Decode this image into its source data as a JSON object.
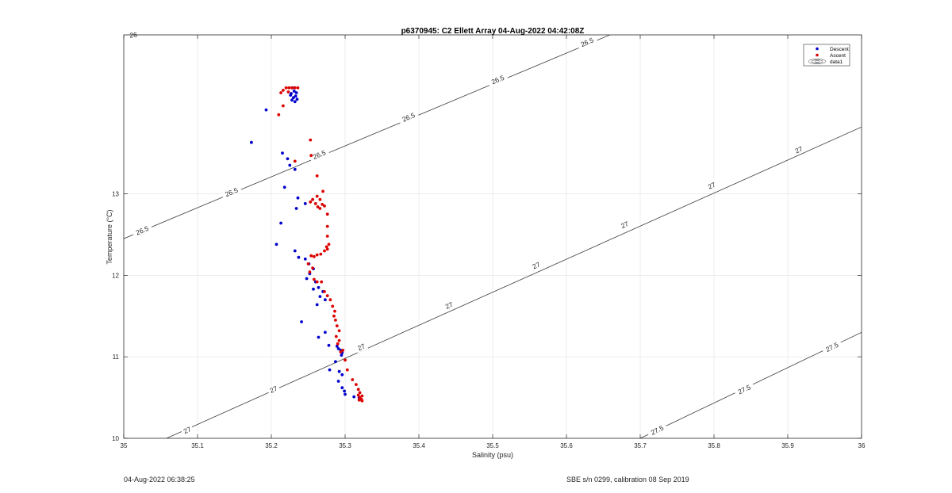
{
  "chart_data": {
    "type": "scatter",
    "title": "p6370945: C2 Ellett Array 04-Aug-2022 04:42:08Z",
    "xlabel": "Salinity (psu)",
    "ylabel": "Temperature (°C)",
    "xlim": [
      35,
      36
    ],
    "ylim": [
      10,
      14.95
    ],
    "xticks": [
      "35",
      "35.1",
      "35.2",
      "35.3",
      "35.4",
      "35.5",
      "35.6",
      "35.7",
      "35.8",
      "35.9",
      "36"
    ],
    "yticks": [
      "10",
      "11",
      "12",
      "13"
    ],
    "grid": true,
    "legend_position": "top-right",
    "legend": [
      {
        "label": "Descent",
        "color": "#0000cc",
        "marker": "dot"
      },
      {
        "label": "Ascent",
        "color": "#dd0000",
        "marker": "dot"
      },
      {
        "label": "data1",
        "marker": "contour"
      }
    ],
    "contours": [
      {
        "level": 26,
        "points": [
          [
            35.0,
            14.98
          ],
          [
            35.035,
            15.02
          ]
        ],
        "labels": [
          {
            "x": 35.013,
            "y": 14.95,
            "text": "26"
          }
        ]
      },
      {
        "level": 26.5,
        "points": [
          [
            35.0,
            12.45
          ],
          [
            35.68,
            15.03
          ]
        ],
        "labels": [
          {
            "x": 35.025,
            "y": 12.55,
            "text": "26.5"
          },
          {
            "x": 35.146,
            "y": 13.02,
            "text": "26.5"
          },
          {
            "x": 35.265,
            "y": 13.48,
            "text": "26.5"
          },
          {
            "x": 35.386,
            "y": 13.94,
            "text": "26.5"
          },
          {
            "x": 35.507,
            "y": 14.4,
            "text": "26.5"
          },
          {
            "x": 35.628,
            "y": 14.86,
            "text": "26.5"
          }
        ]
      },
      {
        "level": 27,
        "points": [
          [
            35.058,
            10.0
          ],
          [
            36.0,
            13.82
          ]
        ],
        "labels": [
          {
            "x": 35.086,
            "y": 10.1,
            "text": "27"
          },
          {
            "x": 35.203,
            "y": 10.6,
            "text": "27"
          },
          {
            "x": 35.322,
            "y": 11.12,
            "text": "27"
          },
          {
            "x": 35.441,
            "y": 11.63,
            "text": "27"
          },
          {
            "x": 35.559,
            "y": 12.12,
            "text": "27"
          },
          {
            "x": 35.679,
            "y": 12.62,
            "text": "27"
          },
          {
            "x": 35.797,
            "y": 13.1,
            "text": "27"
          },
          {
            "x": 35.915,
            "y": 13.54,
            "text": "27"
          }
        ]
      },
      {
        "level": 27.5,
        "points": [
          [
            35.7,
            10.0
          ],
          [
            36.0,
            11.3
          ]
        ],
        "labels": [
          {
            "x": 35.723,
            "y": 10.1,
            "text": "27.5"
          },
          {
            "x": 35.841,
            "y": 10.6,
            "text": "27.5"
          },
          {
            "x": 35.96,
            "y": 11.12,
            "text": "27.5"
          }
        ]
      }
    ],
    "series": [
      {
        "name": "Descent",
        "color": "#0000cc",
        "points": [
          [
            35.229,
            14.3
          ],
          [
            35.231,
            14.26
          ],
          [
            35.234,
            14.24
          ],
          [
            35.227,
            14.23
          ],
          [
            35.233,
            14.2
          ],
          [
            35.226,
            14.21
          ],
          [
            35.23,
            14.18
          ],
          [
            35.235,
            14.16
          ],
          [
            35.228,
            14.15
          ],
          [
            35.232,
            14.13
          ],
          [
            35.193,
            14.03
          ],
          [
            35.173,
            13.63
          ],
          [
            35.215,
            13.5
          ],
          [
            35.222,
            13.43
          ],
          [
            35.225,
            13.35
          ],
          [
            35.232,
            13.3
          ],
          [
            35.218,
            13.08
          ],
          [
            35.236,
            12.95
          ],
          [
            35.246,
            12.88
          ],
          [
            35.234,
            12.82
          ],
          [
            35.213,
            12.64
          ],
          [
            35.207,
            12.38
          ],
          [
            35.232,
            12.3
          ],
          [
            35.237,
            12.22
          ],
          [
            35.246,
            12.2
          ],
          [
            35.251,
            12.14
          ],
          [
            35.257,
            12.08
          ],
          [
            35.252,
            12.02
          ],
          [
            35.248,
            11.96
          ],
          [
            35.26,
            11.92
          ],
          [
            35.264,
            11.85
          ],
          [
            35.257,
            11.83
          ],
          [
            35.27,
            11.8
          ],
          [
            35.266,
            11.74
          ],
          [
            35.273,
            11.7
          ],
          [
            35.262,
            11.64
          ],
          [
            35.241,
            11.43
          ],
          [
            35.273,
            11.3
          ],
          [
            35.264,
            11.24
          ],
          [
            35.278,
            11.14
          ],
          [
            35.289,
            11.13
          ],
          [
            35.291,
            11.1
          ],
          [
            35.294,
            11.08
          ],
          [
            35.296,
            11.05
          ],
          [
            35.295,
            11.02
          ],
          [
            35.287,
            10.94
          ],
          [
            35.279,
            10.84
          ],
          [
            35.292,
            10.82
          ],
          [
            35.296,
            10.78
          ],
          [
            35.291,
            10.7
          ],
          [
            35.296,
            10.62
          ],
          [
            35.299,
            10.58
          ],
          [
            35.3,
            10.54
          ],
          [
            35.312,
            10.51
          ],
          [
            35.319,
            10.5
          ]
        ]
      },
      {
        "name": "Ascent",
        "color": "#dd0000",
        "points": [
          [
            35.22,
            14.3
          ],
          [
            35.224,
            14.3
          ],
          [
            35.228,
            14.3
          ],
          [
            35.232,
            14.3
          ],
          [
            35.236,
            14.3
          ],
          [
            35.216,
            14.27
          ],
          [
            35.213,
            14.24
          ],
          [
            35.223,
            14.25
          ],
          [
            35.216,
            14.08
          ],
          [
            35.21,
            13.97
          ],
          [
            35.253,
            13.66
          ],
          [
            35.232,
            13.4
          ],
          [
            35.254,
            13.47
          ],
          [
            35.262,
            13.22
          ],
          [
            35.27,
            13.03
          ],
          [
            35.262,
            12.97
          ],
          [
            35.266,
            12.93
          ],
          [
            35.256,
            12.93
          ],
          [
            35.26,
            12.88
          ],
          [
            35.253,
            12.9
          ],
          [
            35.269,
            12.87
          ],
          [
            35.276,
            12.75
          ],
          [
            35.272,
            12.85
          ],
          [
            35.263,
            12.84
          ],
          [
            35.266,
            12.82
          ],
          [
            35.276,
            12.6
          ],
          [
            35.276,
            12.48
          ],
          [
            35.278,
            12.38
          ],
          [
            35.275,
            12.35
          ],
          [
            35.272,
            12.3
          ],
          [
            35.276,
            12.32
          ],
          [
            35.267,
            12.26
          ],
          [
            35.262,
            12.25
          ],
          [
            35.258,
            12.23
          ],
          [
            35.254,
            12.24
          ],
          [
            35.25,
            12.14
          ],
          [
            35.256,
            12.09
          ],
          [
            35.252,
            12.04
          ],
          [
            35.258,
            11.95
          ],
          [
            35.262,
            11.92
          ],
          [
            35.268,
            11.92
          ],
          [
            35.272,
            11.8
          ],
          [
            35.276,
            11.75
          ],
          [
            35.28,
            11.7
          ],
          [
            35.283,
            11.62
          ],
          [
            35.286,
            11.56
          ],
          [
            35.285,
            11.5
          ],
          [
            35.287,
            11.45
          ],
          [
            35.289,
            11.38
          ],
          [
            35.292,
            11.32
          ],
          [
            35.288,
            11.25
          ],
          [
            35.292,
            11.2
          ],
          [
            35.29,
            11.16
          ],
          [
            35.297,
            11.08
          ],
          [
            35.294,
            11.06
          ],
          [
            35.3,
            10.96
          ],
          [
            35.303,
            10.84
          ],
          [
            35.31,
            10.72
          ],
          [
            35.315,
            10.66
          ],
          [
            35.318,
            10.6
          ],
          [
            35.32,
            10.56
          ],
          [
            35.318,
            10.53
          ],
          [
            35.323,
            10.52
          ],
          [
            35.32,
            10.5
          ],
          [
            35.322,
            10.48
          ],
          [
            35.319,
            10.47
          ],
          [
            35.323,
            10.46
          ]
        ]
      }
    ]
  },
  "footer": {
    "left": "04-Aug-2022 06:38:25",
    "right": "SBE s/n 0299, calibration 08 Sep 2019"
  }
}
